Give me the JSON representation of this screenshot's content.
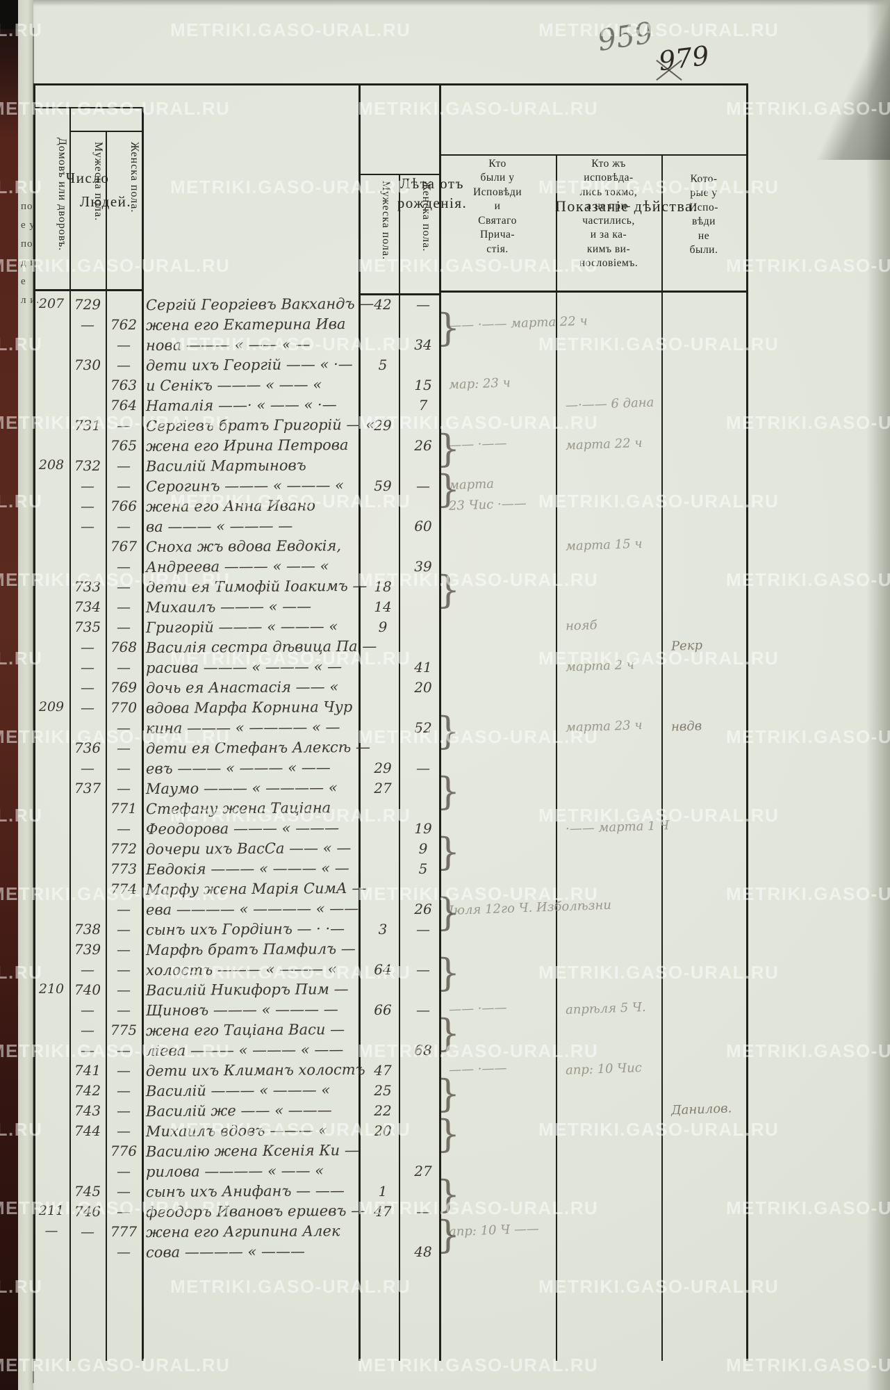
{
  "page": {
    "pencil_number": "959",
    "ink_number": "979",
    "watermark": "METRIKI.GASO-URAL.RU",
    "colors": {
      "paper": "#e2e5dc",
      "rule_ink": "#20201b",
      "handwriting": "#3a352d",
      "pencil": "#9a988a",
      "binding": "#55251c"
    }
  },
  "margin": {
    "prev_page_fragments": "по.\nе у\nпо.\nд и\nе\nл и."
  },
  "header": {
    "num": {
      "title": "Число",
      "sub": "Людей.",
      "dvor": "Домовъ или дворовъ.",
      "male": "Мужеска пола.",
      "female": "Женска пола."
    },
    "age": {
      "title": "Лѣта отъ\nрожденія.",
      "male": "Мужеска пола.",
      "female": "Женска пола."
    },
    "act": {
      "title": "Показаніе дѣйства:",
      "c1": "Кто\nбыли у\nИсповѣди\nи\nСвятаго\nПрича-\nстія.",
      "c2": "Кто жъ\nисповѣда-\nлись токмо,\nа не при-\nчастились,\nи за ка-\nкимъ ви-\nнословіемъ.",
      "c3": "Кото-\nрые у\nИспо-\nвѣди\nне\nбыли."
    }
  },
  "rows": [
    {
      "d": "207",
      "m": "729",
      "n": "Сергій Георгіевъ Вакхандъ —",
      "ma": "42",
      "fa": "—"
    },
    {
      "m": "—",
      "f": "762",
      "n": "жена его Екатерина Ива",
      "a1": "—— ·—— марта 22 ч",
      "br": 1
    },
    {
      "f": "—",
      "n": "нова ——— « —— « —",
      "fa": "34"
    },
    {
      "m": "730",
      "f": "—",
      "n": "дети ихъ Георгій —— « ·—",
      "ma": "5"
    },
    {
      "f": "763",
      "n": "и Сенікъ ——— « —— «",
      "fa": "15",
      "a1": "мар: 23 ч"
    },
    {
      "f": "764",
      "n": "Наталія ——· « —— « ·—",
      "fa": "7",
      "a2": "—·—— 6 дана"
    },
    {
      "m": "731",
      "f": "—",
      "n": "Сергіевъ братъ Григорій — «",
      "ma": "29"
    },
    {
      "f": "765",
      "n": "жена его Ирина Петрова",
      "fa": "26",
      "a1": "—— ·——",
      "a2": "марта 22 ч",
      "br": 1
    },
    {
      "d": "208",
      "m": "732",
      "f": "—",
      "n": "Василій Мартыновъ"
    },
    {
      "m": "—",
      "f": "—",
      "n": "Серогинъ ——— « ——— «",
      "ma": "59",
      "fa": "—",
      "a1": "марта",
      "br": 1
    },
    {
      "m": "—",
      "f": "766",
      "n": "жена его Анна Ивано",
      "a1": "23 Чис ·——"
    },
    {
      "m": "—",
      "f": "—",
      "n": "ва ——— « ——— —",
      "fa": "60"
    },
    {
      "f": "767",
      "n": "Сноха жъ вдова Евдокія,",
      "a2": "марта 15 ч"
    },
    {
      "f": "—",
      "n": "Андреева ——— « —— «",
      "fa": "39"
    },
    {
      "m": "733",
      "f": "—",
      "n": "дети ея Тимофій Іоакимъ —",
      "ma": "18",
      "br": 1
    },
    {
      "m": "734",
      "f": "—",
      "n": "Михаилъ ——— « ——",
      "ma": "14"
    },
    {
      "m": "735",
      "f": "—",
      "n": "Григорій ——— « ——— «",
      "ma": "9",
      "a2": "нояб"
    },
    {
      "m": "—",
      "f": "768",
      "n": "Василія сестра дѣвица Па —",
      "a3": "Рекр"
    },
    {
      "m": "—",
      "f": "—",
      "n": "расива ——— « ——— « —",
      "fa": "41",
      "a2": "марта 2 ч"
    },
    {
      "m": "—",
      "f": "769",
      "n": "дочь ея Анастасія —— «",
      "fa": "20"
    },
    {
      "d": "209",
      "m": "—",
      "f": "770",
      "n": "вдова Марфа Корнина Чур"
    },
    {
      "f": "—",
      "n": "кина ——— « ———— « —",
      "fa": "52",
      "a2": "марта 23 ч",
      "a3": "нвдв",
      "br": 1
    },
    {
      "m": "736",
      "f": "—",
      "n": "дети ея Стефанъ Алексѣ —"
    },
    {
      "m": "—",
      "f": "—",
      "n": "евъ ——— « ——— « ——",
      "ma": "29",
      "fa": "—"
    },
    {
      "m": "737",
      "f": "—",
      "n": "Маумо ——— « ———— «",
      "ma": "27",
      "br": 1
    },
    {
      "f": "771",
      "n": "Стефану жена Таціана"
    },
    {
      "f": "—",
      "n": "Феодорова ——— « ———",
      "fa": "19",
      "a2": "·—— марта 1 Ч"
    },
    {
      "f": "772",
      "n": "дочери ихъ ВасСа —— « —",
      "fa": "9",
      "br": 1
    },
    {
      "f": "773",
      "n": "Евдокія ——— « ——— « —",
      "fa": "5"
    },
    {
      "f": "774",
      "n": "Марфу жена Марія СимА —"
    },
    {
      "f": "—",
      "n": "ева ———— « ———— « ——",
      "fa": "26",
      "a1": "Іюля 12го Ч. Изболѣзни",
      "br": 1
    },
    {
      "m": "738",
      "f": "—",
      "n": "сынъ ихъ Гордіинъ — · ·—",
      "ma": "3",
      "fa": "—"
    },
    {
      "m": "739",
      "f": "—",
      "n": "Марфѣ братъ Памфилъ —"
    },
    {
      "m": "—",
      "f": "—",
      "n": "холостъ ——— « ——— «",
      "ma": "64",
      "fa": "—",
      "br": 1
    },
    {
      "d": "210",
      "m": "740",
      "f": "—",
      "n": "Василій Никифоръ Пим —"
    },
    {
      "m": "—",
      "f": "—",
      "n": "Щиновъ ——— « ——— —",
      "ma": "66",
      "fa": "—",
      "a1": "—— ·——",
      "a2": "апрѣля 5 Ч."
    },
    {
      "m": "—",
      "f": "775",
      "n": "жена его Таціана Васи —",
      "br": 1
    },
    {
      "m": "—",
      "f": "—",
      "n": "ліева ——— « ——— « ——",
      "fa": "68"
    },
    {
      "m": "741",
      "f": "—",
      "n": "дети ихъ Климанъ холостъ",
      "ma": "47",
      "a1": "—— ·——",
      "a2": "апр: 10 Чис"
    },
    {
      "m": "742",
      "f": "—",
      "n": "Василій ——— « ——— «",
      "ma": "25",
      "br": 1
    },
    {
      "m": "743",
      "f": "—",
      "n": "Василій же —— « ———",
      "ma": "22",
      "a3": "Данилов."
    },
    {
      "m": "744",
      "f": "—",
      "n": "Михаилъ вдовъ ——— «",
      "ma": "20",
      "br": 1
    },
    {
      "f": "776",
      "n": "Василію жена Ксенія Ки —"
    },
    {
      "f": "—",
      "n": "рилова ———— « —— «",
      "fa": "27"
    },
    {
      "m": "745",
      "f": "—",
      "n": "сынъ ихъ Анифанъ — ——",
      "ma": "1",
      "br": 1
    },
    {
      "d": "211",
      "m": "746",
      "f": "—",
      "n": "феодоръ Ивановъ ершевъ —",
      "ma": "47",
      "fa": "—"
    },
    {
      "d": "—",
      "m": "—",
      "f": "777",
      "n": "жена его Агрипина Алек",
      "a1": "апр: 10 Ч ——",
      "br": 1
    },
    {
      "f": "—",
      "n": "сова ———— « ———",
      "fa": "48"
    }
  ]
}
